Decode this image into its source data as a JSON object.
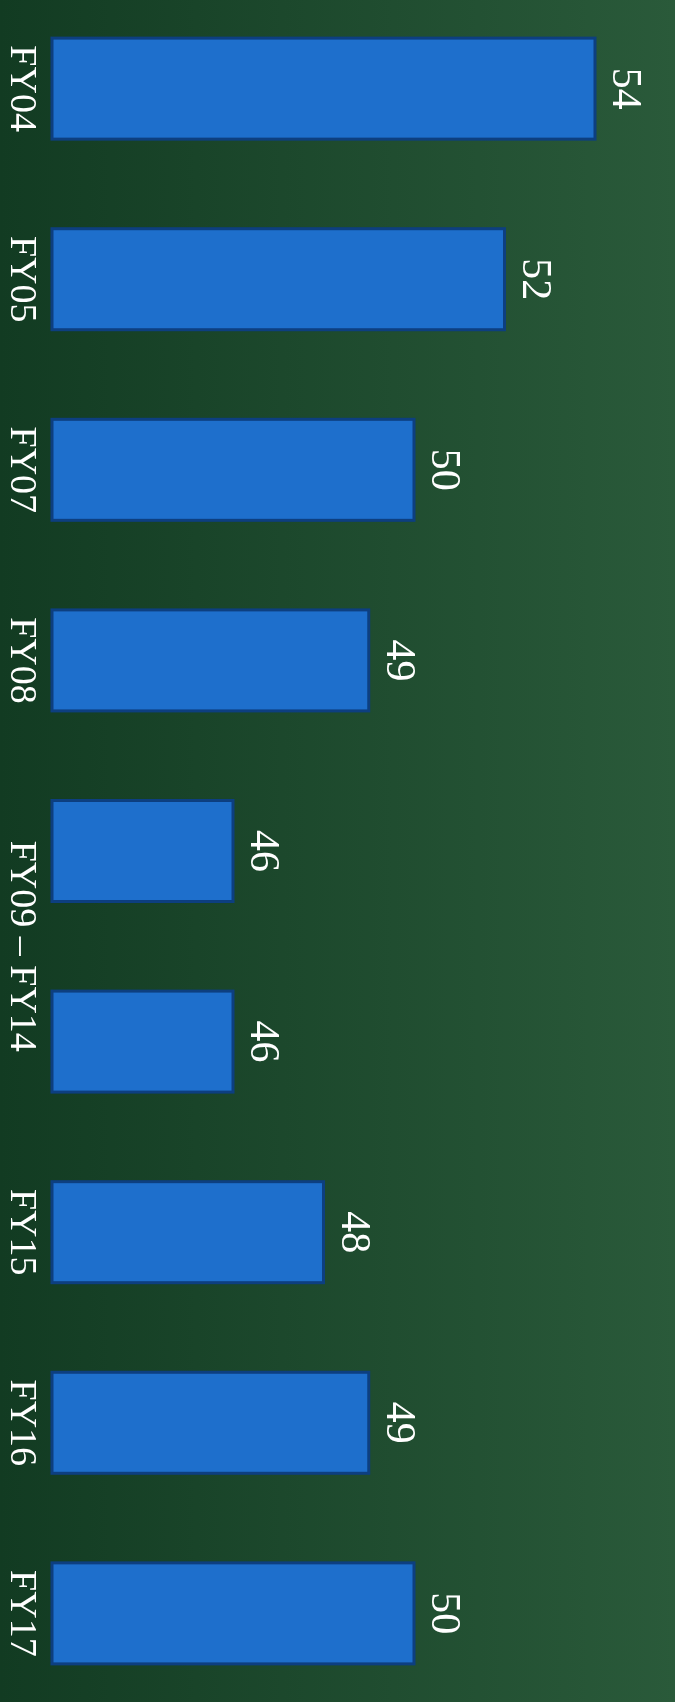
{
  "chart_data": {
    "type": "bar",
    "orientation": "horizontal",
    "categories": [
      "FY04",
      "FY05",
      "FY07",
      "FY08",
      "FY09 – FY14",
      null,
      "FY15",
      "FY16",
      "FY17"
    ],
    "values": [
      54,
      52,
      50,
      49,
      46,
      46,
      48,
      49,
      50
    ],
    "color": "#1e6fcc",
    "xlim": [
      42,
      54
    ],
    "tick_labels": false,
    "data_labels": true
  }
}
